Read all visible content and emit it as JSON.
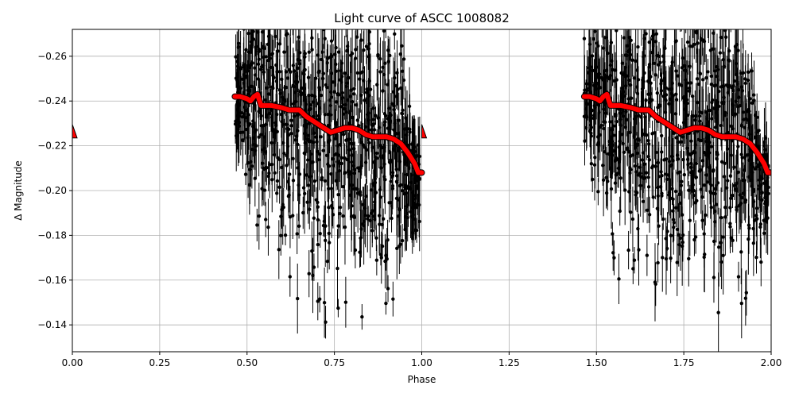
{
  "chart_data": {
    "type": "scatter",
    "title": "Light curve of ASCC 1008082",
    "xlabel": "Phase",
    "ylabel": "Δ Magnitude",
    "xlim": [
      0,
      2
    ],
    "ylim": [
      -0.128,
      -0.272
    ],
    "y_inverted": true,
    "grid": true,
    "x_ticks": [
      0,
      0.25,
      0.5,
      0.75,
      1.0,
      1.25,
      1.5,
      1.75,
      2.0
    ],
    "x_tick_labels": [
      "0.00",
      "0.25",
      "0.50",
      "0.75",
      "1.00",
      "1.25",
      "1.50",
      "1.75",
      "2.00"
    ],
    "y_ticks": [
      -0.26,
      -0.24,
      -0.22,
      -0.2,
      -0.18,
      -0.16,
      -0.14
    ],
    "y_tick_labels": [
      "−0.26",
      "−0.24",
      "−0.22",
      "−0.20",
      "−0.18",
      "−0.16",
      "−0.14"
    ],
    "observed_phase_range": [
      0.47,
      0.99
    ],
    "observation_colors": {
      "points": "#000000",
      "errorbars": "#000000"
    },
    "series": [
      {
        "style": "points-with-errorbars",
        "color": "#000000",
        "x": [
          0.47,
          0.48,
          0.49,
          0.5,
          0.51,
          0.52,
          0.53,
          0.54,
          0.55,
          0.56,
          0.57,
          0.58,
          0.59,
          0.6,
          0.61,
          0.62,
          0.63,
          0.64,
          0.65,
          0.66,
          0.67,
          0.68,
          0.69,
          0.7,
          0.71,
          0.72,
          0.73,
          0.74,
          0.75,
          0.76,
          0.77,
          0.78,
          0.79,
          0.8,
          0.81,
          0.82,
          0.83,
          0.84,
          0.85,
          0.86,
          0.87,
          0.88,
          0.89,
          0.9,
          0.91,
          0.92,
          0.93,
          0.94,
          0.95,
          0.96,
          0.97,
          0.98,
          0.99
        ],
        "y_median": [
          -0.242,
          -0.242,
          -0.241,
          -0.241,
          -0.24,
          -0.241,
          -0.242,
          -0.241,
          -0.238,
          -0.238,
          -0.237,
          -0.238,
          -0.238,
          -0.237,
          -0.236,
          -0.236,
          -0.235,
          -0.234,
          -0.233,
          -0.232,
          -0.231,
          -0.23,
          -0.229,
          -0.228,
          -0.227,
          -0.227,
          -0.227,
          -0.228,
          -0.228,
          -0.228,
          -0.227,
          -0.227,
          -0.226,
          -0.226,
          -0.226,
          -0.225,
          -0.224,
          -0.224,
          -0.224,
          -0.224,
          -0.224,
          -0.224,
          -0.224,
          -0.223,
          -0.222,
          -0.221,
          -0.219,
          -0.216,
          -0.214,
          -0.21,
          -0.208,
          -0.207,
          -0.207
        ],
        "y_spread": [
          0.035,
          0.04,
          0.05,
          0.06,
          0.07,
          0.075,
          0.08,
          0.08,
          0.085,
          0.09,
          0.09,
          0.09,
          0.095,
          0.095,
          0.1,
          0.1,
          0.1,
          0.1,
          0.1,
          0.1,
          0.1,
          0.1,
          0.1,
          0.1,
          0.1,
          0.1,
          0.1,
          0.1,
          0.1,
          0.1,
          0.1,
          0.1,
          0.1,
          0.1,
          0.1,
          0.1,
          0.1,
          0.1,
          0.1,
          0.1,
          0.1,
          0.1,
          0.1,
          0.095,
          0.09,
          0.085,
          0.08,
          0.075,
          0.07,
          0.06,
          0.05,
          0.04,
          0.03
        ]
      },
      {
        "style": "binned-line",
        "color": "#ff0000",
        "edgecolor": "#000000",
        "x": [
          0.465,
          0.48,
          0.5,
          0.51,
          0.52,
          0.53,
          0.54,
          0.55,
          0.57,
          0.6,
          0.62,
          0.65,
          0.67,
          0.7,
          0.72,
          0.74,
          0.76,
          0.78,
          0.8,
          0.82,
          0.84,
          0.86,
          0.88,
          0.9,
          0.92,
          0.94,
          0.96,
          0.98,
          0.99,
          1.0
        ],
        "y": [
          -0.242,
          -0.242,
          -0.241,
          -0.24,
          -0.242,
          -0.243,
          -0.238,
          -0.238,
          -0.238,
          -0.237,
          -0.236,
          -0.236,
          -0.233,
          -0.23,
          -0.228,
          -0.226,
          -0.227,
          -0.228,
          -0.228,
          -0.227,
          -0.225,
          -0.224,
          -0.224,
          -0.224,
          -0.223,
          -0.221,
          -0.217,
          -0.212,
          -0.208,
          -0.208
        ]
      }
    ],
    "edge_markers": [
      {
        "x": 0.0,
        "y": -0.226
      },
      {
        "x": 1.0,
        "y": -0.226
      },
      {
        "x": 2.0,
        "y": -0.226
      }
    ]
  }
}
